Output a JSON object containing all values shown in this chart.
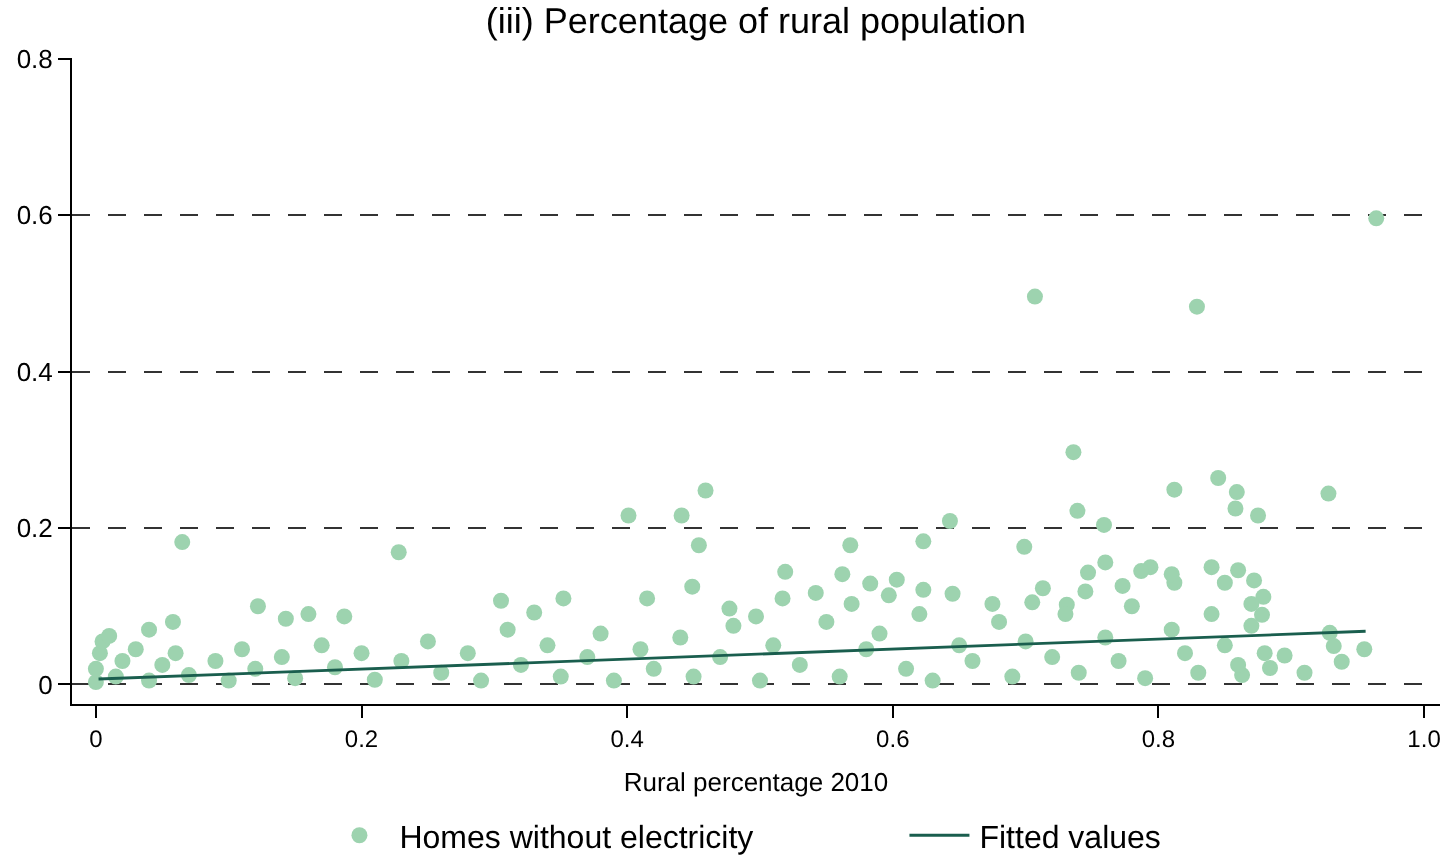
{
  "chart_data": {
    "type": "scatter",
    "title": "(iii) Percentage of rural population",
    "xlabel": "Rural percentage 2010",
    "xlim": [
      -0.018,
      1.012
    ],
    "ylim": [
      -0.025,
      0.801
    ],
    "xticks": [
      0,
      0.2,
      0.4,
      0.6,
      0.8,
      {
        "value": 1,
        "label": "1.0"
      }
    ],
    "yticks": [
      0,
      0.2,
      0.4,
      0.6,
      0.8
    ],
    "grid": "y",
    "legend": "bottom",
    "marker": "circle",
    "series": [
      {
        "name": "Homes without electricity",
        "color": "#9dd3af",
        "x": [
          0.964,
          0.707,
          0.829,
          0.736,
          0.812,
          0.845,
          0.859,
          0.858,
          0.875,
          0.928,
          0.739,
          0.759,
          0.643,
          0.623,
          0.699,
          0.568,
          0.519,
          0.497,
          0.065,
          0.228,
          0.401,
          0.441,
          0.459,
          0.454,
          0.449,
          0.122,
          0.058,
          0.04,
          0.143,
          0.16,
          0.187,
          0.305,
          0.352,
          0.33,
          0.415,
          0.477,
          0.955,
          0.938,
          0.91,
          0.895,
          0.884,
          0.863,
          0.929,
          0.932,
          0.878,
          0.879,
          0.87,
          0.86,
          0.872,
          0.85,
          0.84,
          0.812,
          0.81,
          0.794,
          0.787,
          0.773,
          0.76,
          0.747,
          0.745,
          0.713,
          0.731,
          0.705,
          0.675,
          0.645,
          0.623,
          0.603,
          0.597,
          0.583,
          0.562,
          0.542,
          0.517,
          0.569,
          0.0,
          0.0,
          0.003,
          0.005,
          0.01,
          0.015,
          0.02,
          0.03,
          0.04,
          0.05,
          0.06,
          0.07,
          0.09,
          0.1,
          0.11,
          0.12,
          0.14,
          0.15,
          0.17,
          0.18,
          0.2,
          0.21,
          0.23,
          0.25,
          0.26,
          0.28,
          0.29,
          0.31,
          0.32,
          0.34,
          0.35,
          0.37,
          0.38,
          0.39,
          0.41,
          0.42,
          0.44,
          0.45,
          0.47,
          0.48,
          0.5,
          0.51,
          0.53,
          0.55,
          0.56,
          0.58,
          0.59,
          0.61,
          0.62,
          0.63,
          0.65,
          0.66,
          0.68,
          0.69,
          0.7,
          0.72,
          0.73,
          0.74,
          0.76,
          0.77,
          0.78,
          0.79,
          0.81,
          0.82,
          0.83,
          0.84,
          0.85,
          0.86,
          0.87,
          0.88
        ],
        "values": [
          0.596,
          0.496,
          0.483,
          0.297,
          0.249,
          0.264,
          0.246,
          0.225,
          0.216,
          0.244,
          0.222,
          0.204,
          0.209,
          0.183,
          0.176,
          0.178,
          0.144,
          0.087,
          0.182,
          0.169,
          0.216,
          0.216,
          0.248,
          0.178,
          0.125,
          0.1,
          0.08,
          0.07,
          0.084,
          0.09,
          0.087,
          0.107,
          0.11,
          0.092,
          0.11,
          0.097,
          0.045,
          0.029,
          0.015,
          0.037,
          0.021,
          0.012,
          0.066,
          0.049,
          0.089,
          0.112,
          0.103,
          0.146,
          0.133,
          0.13,
          0.15,
          0.13,
          0.141,
          0.15,
          0.145,
          0.126,
          0.156,
          0.143,
          0.119,
          0.123,
          0.102,
          0.105,
          0.103,
          0.116,
          0.121,
          0.134,
          0.114,
          0.129,
          0.141,
          0.117,
          0.11,
          0.103,
          0.003,
          0.02,
          0.04,
          0.055,
          0.062,
          0.01,
          0.03,
          0.045,
          0.005,
          0.025,
          0.04,
          0.012,
          0.03,
          0.005,
          0.045,
          0.02,
          0.035,
          0.008,
          0.05,
          0.022,
          0.04,
          0.006,
          0.03,
          0.055,
          0.015,
          0.04,
          0.005,
          0.07,
          0.025,
          0.05,
          0.01,
          0.035,
          0.065,
          0.005,
          0.045,
          0.02,
          0.06,
          0.01,
          0.035,
          0.075,
          0.005,
          0.05,
          0.025,
          0.08,
          0.01,
          0.045,
          0.065,
          0.02,
          0.09,
          0.005,
          0.05,
          0.03,
          0.08,
          0.01,
          0.055,
          0.035,
          0.09,
          0.015,
          0.06,
          0.03,
          0.1,
          0.008,
          0.07,
          0.04,
          0.015,
          0.09,
          0.05,
          0.025,
          0.075,
          0.04
        ]
      },
      {
        "name": "Fitted values",
        "type": "line",
        "marker": "none",
        "color": "#1a5e4e",
        "x": [
          0.002,
          0.956
        ],
        "values": [
          0.007,
          0.068
        ]
      }
    ]
  }
}
